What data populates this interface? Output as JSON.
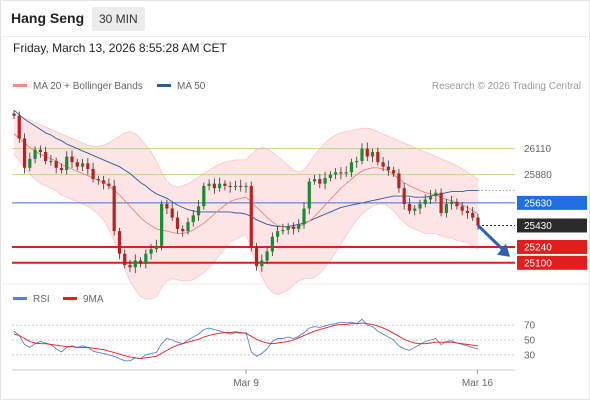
{
  "header": {
    "title": "Hang Seng",
    "timeframe": "30 MIN",
    "datetime": "Friday, March 13, 2026 8:55:28 AM CET"
  },
  "legend": {
    "ma_bb": {
      "label": "MA 20 + Bollinger Bands",
      "color": "#f28b82"
    },
    "ma50": {
      "label": "MA 50",
      "color": "#2e5b9a"
    },
    "research": "Research © 2026 Trading Central"
  },
  "rsi_legend": {
    "rsi": {
      "label": "RSI",
      "color": "#5b7fd6"
    },
    "ma9": {
      "label": "9MA",
      "color": "#e02020"
    }
  },
  "chart_data": [
    {
      "type": "candlestick",
      "title": "Hang Seng",
      "x_ticks": [
        "Mar 9",
        "Mar 16"
      ],
      "ylim": [
        24930,
        26540
      ],
      "levels": [
        {
          "value": 26110,
          "label": "26110",
          "style": "green-line"
        },
        {
          "value": 25880,
          "label": "25880",
          "style": "green-line"
        },
        {
          "value": 25630,
          "label": "25630",
          "style": "blue-line"
        },
        {
          "value": 25430,
          "label": "25430",
          "style": "current-price"
        },
        {
          "value": 25240,
          "label": "25240",
          "style": "red-line"
        },
        {
          "value": 25100,
          "label": "25100",
          "style": "red-line"
        }
      ],
      "close": [
        26400,
        26200,
        25940,
        26020,
        26100,
        26080,
        26000,
        26000,
        25940,
        25920,
        26040,
        25990,
        25950,
        25980,
        25930,
        25840,
        25830,
        25800,
        25780,
        25380,
        25180,
        25080,
        25060,
        25120,
        25090,
        25180,
        25220,
        25250,
        25620,
        25580,
        25500,
        25400,
        25380,
        25460,
        25520,
        25600,
        25780,
        25800,
        25760,
        25800,
        25780,
        25770,
        25780,
        25770,
        25780,
        25230,
        25070,
        25120,
        25200,
        25330,
        25380,
        25390,
        25420,
        25400,
        25440,
        25580,
        25820,
        25840,
        25800,
        25850,
        25880,
        25900,
        25890,
        25900,
        25990,
        26000,
        26110,
        26040,
        26080,
        25990,
        25950,
        25920,
        25890,
        25760,
        25620,
        25560,
        25580,
        25620,
        25660,
        25690,
        25720,
        25540,
        25620,
        25640,
        25600,
        25560,
        25540,
        25500,
        25430
      ],
      "ma20": [
        26240,
        26200,
        26160,
        26120,
        26090,
        26060,
        26040,
        26020,
        26000,
        25970,
        25950,
        25930,
        25910,
        25890,
        25870,
        25850,
        25830,
        25810,
        25780,
        25740,
        25700,
        25650,
        25600,
        25550,
        25500,
        25460,
        25430,
        25400,
        25390,
        25380,
        25370,
        25360,
        25360,
        25370,
        25390,
        25420,
        25450,
        25490,
        25530,
        25570,
        25610,
        25640,
        25660,
        25670,
        25680,
        25640,
        25590,
        25550,
        25500,
        25460,
        25430,
        25420,
        25410,
        25410,
        25420,
        25440,
        25470,
        25510,
        25560,
        25610,
        25660,
        25710,
        25760,
        25800,
        25840,
        25880,
        25910,
        25930,
        25940,
        25940,
        25930,
        25910,
        25880,
        25840,
        25810,
        25780,
        25760,
        25740,
        25720,
        25710,
        25700,
        25680,
        25660,
        25650,
        25630,
        25610,
        25590,
        25560,
        25530
      ],
      "bb_upper": [
        26420,
        26400,
        26380,
        26360,
        26340,
        26320,
        26300,
        26280,
        26260,
        26240,
        26220,
        26200,
        26180,
        26160,
        26140,
        26130,
        26130,
        26140,
        26160,
        26190,
        26220,
        26250,
        26260,
        26240,
        26200,
        26140,
        26080,
        26000,
        25900,
        25820,
        25780,
        25770,
        25780,
        25800,
        25830,
        25860,
        25890,
        25920,
        25950,
        25970,
        25990,
        26000,
        26010,
        26010,
        26010,
        26060,
        26100,
        26120,
        26110,
        26080,
        26040,
        26000,
        25960,
        25920,
        25900,
        25920,
        25980,
        26050,
        26110,
        26160,
        26200,
        26230,
        26250,
        26260,
        26270,
        26280,
        26290,
        26290,
        26280,
        26260,
        26240,
        26220,
        26200,
        26180,
        26160,
        26140,
        26120,
        26100,
        26080,
        26060,
        26040,
        26020,
        26000,
        25980,
        25960,
        25930,
        25900,
        25870,
        25840
      ],
      "bb_lower": [
        26060,
        26000,
        25940,
        25880,
        25840,
        25800,
        25780,
        25760,
        25740,
        25700,
        25680,
        25660,
        25640,
        25620,
        25600,
        25570,
        25530,
        25480,
        25400,
        25290,
        25180,
        25050,
        24940,
        24860,
        24800,
        24780,
        24780,
        24800,
        24880,
        24940,
        24960,
        24950,
        24940,
        24940,
        24950,
        24980,
        25010,
        25060,
        25110,
        25170,
        25230,
        25280,
        25310,
        25330,
        25350,
        25220,
        25080,
        24980,
        24890,
        24840,
        24820,
        24840,
        24860,
        24900,
        24940,
        24960,
        24960,
        24970,
        25010,
        25060,
        25120,
        25190,
        25270,
        25340,
        25410,
        25480,
        25530,
        25570,
        25600,
        25620,
        25620,
        25600,
        25560,
        25500,
        25460,
        25420,
        25400,
        25380,
        25360,
        25360,
        25360,
        25340,
        25320,
        25320,
        25300,
        25290,
        25280,
        25250,
        25220
      ],
      "ma50": [
        26450,
        26410,
        26370,
        26340,
        26310,
        26280,
        26250,
        26230,
        26200,
        26180,
        26150,
        26130,
        26110,
        26090,
        26070,
        26050,
        26030,
        26010,
        25990,
        25970,
        25950,
        25920,
        25890,
        25850,
        25810,
        25780,
        25740,
        25710,
        25690,
        25670,
        25640,
        25610,
        25590,
        25570,
        25560,
        25550,
        25550,
        25550,
        25550,
        25550,
        25550,
        25550,
        25540,
        25540,
        25530,
        25510,
        25480,
        25460,
        25440,
        25430,
        25420,
        25420,
        25420,
        25430,
        25440,
        25450,
        25470,
        25490,
        25510,
        25530,
        25550,
        25570,
        25590,
        25600,
        25610,
        25620,
        25630,
        25640,
        25650,
        25660,
        25670,
        25680,
        25690,
        25690,
        25690,
        25690,
        25680,
        25680,
        25680,
        25690,
        25700,
        25710,
        25720,
        25730,
        25730,
        25730,
        25740,
        25740,
        25740
      ],
      "projection": {
        "from": 25430,
        "to": 25180,
        "direction": "down"
      }
    },
    {
      "type": "line",
      "title": "RSI",
      "y_ticks": [
        70,
        50,
        30
      ],
      "ylim": [
        15,
        85
      ],
      "series": [
        {
          "name": "RSI",
          "color": "#5b7fd6",
          "values": [
            62,
            56,
            44,
            40,
            45,
            48,
            46,
            44,
            38,
            34,
            40,
            42,
            40,
            42,
            40,
            35,
            33,
            32,
            30,
            28,
            25,
            22,
            22,
            26,
            25,
            30,
            32,
            33,
            45,
            52,
            50,
            47,
            45,
            50,
            54,
            58,
            64,
            66,
            64,
            62,
            60,
            58,
            60,
            59,
            60,
            34,
            28,
            32,
            38,
            48,
            52,
            52,
            54,
            52,
            55,
            60,
            66,
            68,
            67,
            69,
            71,
            72,
            74,
            73,
            74,
            72,
            78,
            70,
            68,
            62,
            58,
            54,
            50,
            42,
            38,
            36,
            40,
            44,
            48,
            50,
            52,
            44,
            48,
            49,
            46,
            44,
            42,
            40,
            38
          ]
        },
        {
          "name": "9MA",
          "color": "#e02020",
          "values": [
            58,
            56,
            52,
            48,
            46,
            45,
            45,
            44,
            43,
            42,
            41,
            41,
            40,
            40,
            40,
            39,
            38,
            37,
            35,
            33,
            31,
            29,
            27,
            26,
            25,
            26,
            27,
            28,
            32,
            36,
            40,
            43,
            45,
            47,
            49,
            51,
            54,
            56,
            58,
            59,
            60,
            60,
            61,
            60,
            59,
            55,
            51,
            48,
            46,
            45,
            46,
            47,
            48,
            50,
            53,
            56,
            59,
            62,
            64,
            66,
            68,
            70,
            71,
            71,
            72,
            72,
            73,
            72,
            71,
            69,
            66,
            63,
            59,
            55,
            51,
            48,
            46,
            45,
            45,
            46,
            47,
            47,
            47,
            47,
            46,
            45,
            44,
            43,
            42
          ]
        }
      ]
    }
  ]
}
